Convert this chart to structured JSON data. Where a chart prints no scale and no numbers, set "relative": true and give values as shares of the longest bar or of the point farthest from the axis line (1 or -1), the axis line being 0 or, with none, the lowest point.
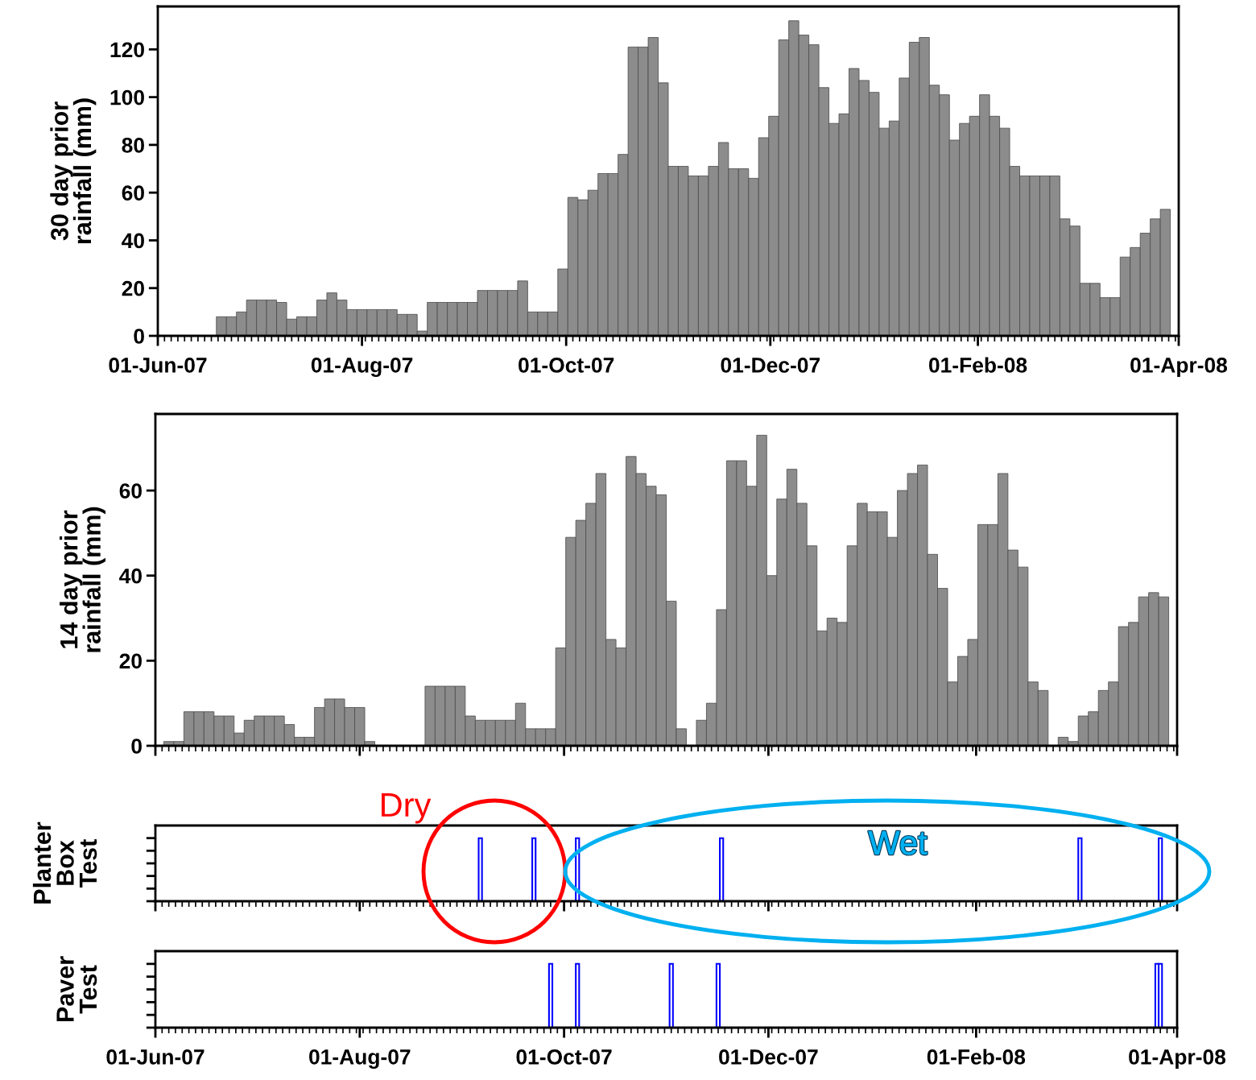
{
  "chart_data": [
    {
      "type": "bar",
      "ylabel": "30 day prior\nrainfall (mm)",
      "ylim": [
        0,
        138
      ],
      "yticks": [
        0,
        20,
        40,
        60,
        80,
        100,
        120
      ],
      "xlim": [
        "2007-06-01",
        "2008-04-01"
      ],
      "xticks": [
        {
          "value": "2007-06-01",
          "label": "01-Jun-07"
        },
        {
          "value": "2007-08-01",
          "label": "01-Aug-07"
        },
        {
          "value": "2007-10-01",
          "label": "01-Oct-07"
        },
        {
          "value": "2007-12-01",
          "label": "01-Dec-07"
        },
        {
          "value": "2008-02-01",
          "label": "01-Feb-08"
        },
        {
          "value": "2008-04-01",
          "label": "01-Apr-08"
        }
      ],
      "series": [
        {
          "color": "#8c8c8c",
          "x": [
            "2007-06-20",
            "2007-06-23",
            "2007-06-26",
            "2007-06-29",
            "2007-07-02",
            "2007-07-05",
            "2007-07-08",
            "2007-07-11",
            "2007-07-14",
            "2007-07-17",
            "2007-07-20",
            "2007-07-23",
            "2007-07-26",
            "2007-07-29",
            "2007-08-01",
            "2007-08-04",
            "2007-08-07",
            "2007-08-10",
            "2007-08-13",
            "2007-08-16",
            "2007-08-19",
            "2007-08-22",
            "2007-08-25",
            "2007-08-28",
            "2007-08-31",
            "2007-09-03",
            "2007-09-06",
            "2007-09-09",
            "2007-09-12",
            "2007-09-15",
            "2007-09-18",
            "2007-09-21",
            "2007-09-24",
            "2007-09-27",
            "2007-09-30",
            "2007-10-03",
            "2007-10-06",
            "2007-10-09",
            "2007-10-12",
            "2007-10-15",
            "2007-10-18",
            "2007-10-21",
            "2007-10-24",
            "2007-10-27",
            "2007-10-30",
            "2007-11-02",
            "2007-11-05",
            "2007-11-08",
            "2007-11-11",
            "2007-11-14",
            "2007-11-17",
            "2007-11-20",
            "2007-11-23",
            "2007-11-26",
            "2007-11-29",
            "2007-12-02",
            "2007-12-05",
            "2007-12-08",
            "2007-12-11",
            "2007-12-14",
            "2007-12-17",
            "2007-12-20",
            "2007-12-23",
            "2007-12-26",
            "2007-12-29",
            "2008-01-01",
            "2008-01-04",
            "2008-01-07",
            "2008-01-10",
            "2008-01-13",
            "2008-01-16",
            "2008-01-19",
            "2008-01-22",
            "2008-01-25",
            "2008-01-28",
            "2008-01-31",
            "2008-02-03",
            "2008-02-06",
            "2008-02-09",
            "2008-02-12",
            "2008-02-15",
            "2008-02-18",
            "2008-02-21",
            "2008-02-24",
            "2008-02-27",
            "2008-03-01",
            "2008-03-04",
            "2008-03-07",
            "2008-03-10",
            "2008-03-13",
            "2008-03-16",
            "2008-03-19",
            "2008-03-22",
            "2008-03-25",
            "2008-03-28"
          ],
          "values": [
            8,
            8,
            10,
            15,
            15,
            15,
            14,
            7,
            8,
            8,
            15,
            18,
            15,
            11,
            11,
            11,
            11,
            11,
            9,
            9,
            2,
            14,
            14,
            14,
            14,
            14,
            19,
            19,
            19,
            19,
            23,
            10,
            10,
            10,
            28,
            58,
            57,
            61,
            68,
            68,
            76,
            121,
            121,
            125,
            106,
            71,
            71,
            67,
            67,
            71,
            81,
            70,
            70,
            66,
            83,
            92,
            124,
            132,
            126,
            122,
            104,
            89,
            93,
            112,
            107,
            102,
            87,
            90,
            108,
            123,
            125,
            105,
            101,
            82,
            89,
            92,
            101,
            92,
            87,
            71,
            67,
            67,
            67,
            67,
            49,
            46,
            22,
            22,
            16,
            16,
            33,
            37,
            43,
            49,
            53
          ]
        }
      ]
    },
    {
      "type": "bar",
      "ylabel": "14 day prior\nrainfall (mm)",
      "ylim": [
        0,
        78
      ],
      "yticks": [
        0,
        20,
        40,
        60
      ],
      "xlim": [
        "2007-06-01",
        "2008-04-01"
      ],
      "tick_labels": "y",
      "xticks": [
        {
          "value": "2007-06-01",
          "label": null
        },
        {
          "value": "2007-08-01",
          "label": null
        },
        {
          "value": "2007-10-01",
          "label": null
        },
        {
          "value": "2007-12-01",
          "label": null
        },
        {
          "value": "2008-02-01",
          "label": null
        },
        {
          "value": "2008-04-01",
          "label": null
        }
      ],
      "series": [
        {
          "color": "#8c8c8c",
          "x": [
            "2007-06-05",
            "2007-06-08",
            "2007-06-11",
            "2007-06-14",
            "2007-06-17",
            "2007-06-20",
            "2007-06-23",
            "2007-06-26",
            "2007-06-29",
            "2007-07-02",
            "2007-07-05",
            "2007-07-08",
            "2007-07-11",
            "2007-07-14",
            "2007-07-17",
            "2007-07-20",
            "2007-07-23",
            "2007-07-26",
            "2007-07-29",
            "2007-08-01",
            "2007-08-04",
            "2007-08-07",
            "2007-08-10",
            "2007-08-13",
            "2007-08-16",
            "2007-08-19",
            "2007-08-22",
            "2007-08-25",
            "2007-08-28",
            "2007-08-31",
            "2007-09-03",
            "2007-09-06",
            "2007-09-09",
            "2007-09-12",
            "2007-09-15",
            "2007-09-18",
            "2007-09-21",
            "2007-09-24",
            "2007-09-27",
            "2007-09-30",
            "2007-10-03",
            "2007-10-06",
            "2007-10-09",
            "2007-10-12",
            "2007-10-15",
            "2007-10-18",
            "2007-10-21",
            "2007-10-24",
            "2007-10-27",
            "2007-10-30",
            "2007-11-02",
            "2007-11-05",
            "2007-11-08",
            "2007-11-11",
            "2007-11-14",
            "2007-11-17",
            "2007-11-20",
            "2007-11-23",
            "2007-11-26",
            "2007-11-29",
            "2007-12-02",
            "2007-12-05",
            "2007-12-08",
            "2007-12-11",
            "2007-12-14",
            "2007-12-17",
            "2007-12-20",
            "2007-12-23",
            "2007-12-26",
            "2007-12-29",
            "2008-01-01",
            "2008-01-04",
            "2008-01-07",
            "2008-01-10",
            "2008-01-13",
            "2008-01-16",
            "2008-01-19",
            "2008-01-22",
            "2008-01-25",
            "2008-01-28",
            "2008-01-31",
            "2008-02-03",
            "2008-02-06",
            "2008-02-09",
            "2008-02-12",
            "2008-02-15",
            "2008-02-18",
            "2008-02-21",
            "2008-02-24",
            "2008-02-27",
            "2008-03-01",
            "2008-03-04",
            "2008-03-07",
            "2008-03-10",
            "2008-03-13",
            "2008-03-16",
            "2008-03-19",
            "2008-03-22",
            "2008-03-25",
            "2008-03-28"
          ],
          "values": [
            1,
            1,
            8,
            8,
            8,
            7,
            7,
            3,
            6,
            7,
            7,
            7,
            5,
            2,
            2,
            9,
            11,
            11,
            9,
            9,
            1,
            0,
            0,
            0,
            0,
            0,
            14,
            14,
            14,
            14,
            7,
            6,
            6,
            6,
            6,
            10,
            4,
            4,
            4,
            23,
            49,
            53,
            57,
            64,
            25,
            23,
            68,
            64,
            61,
            59,
            34,
            4,
            0,
            6,
            10,
            32,
            67,
            67,
            61,
            73,
            40,
            58,
            65,
            57,
            47,
            27,
            30,
            29,
            47,
            57,
            55,
            55,
            49,
            60,
            64,
            66,
            45,
            37,
            15,
            21,
            25,
            52,
            52,
            64,
            46,
            42,
            15,
            13,
            0,
            2,
            1,
            7,
            8,
            13,
            15,
            28,
            29,
            35,
            36,
            35
          ]
        }
      ]
    },
    {
      "type": "bar",
      "relative": true,
      "ylabel": "Planter\nBox\nTest",
      "xlim": [
        "2007-06-01",
        "2008-04-01"
      ],
      "tick_labels": false,
      "xticks": [
        {
          "value": "2007-06-01",
          "label": null
        },
        {
          "value": "2007-08-01",
          "label": null
        },
        {
          "value": "2007-10-01",
          "label": null
        },
        {
          "value": "2007-12-01",
          "label": null
        },
        {
          "value": "2008-02-01",
          "label": null
        },
        {
          "value": "2008-04-01",
          "label": null
        }
      ],
      "annotations": [
        "Dry",
        "Wet"
      ],
      "series": [
        {
          "color": "#0000ff",
          "x": [
            "2007-09-06",
            "2007-09-22",
            "2007-10-05",
            "2007-11-17",
            "2008-03-03",
            "2008-03-27"
          ],
          "values": [
            1,
            1,
            1,
            1,
            1,
            1
          ]
        }
      ]
    },
    {
      "type": "bar",
      "relative": true,
      "ylabel": "Paver\nTest",
      "xlim": [
        "2007-06-01",
        "2008-04-01"
      ],
      "tick_labels": "x",
      "xticks": [
        {
          "value": "2007-06-01",
          "label": "01-Jun-07"
        },
        {
          "value": "2007-08-01",
          "label": "01-Aug-07"
        },
        {
          "value": "2007-10-01",
          "label": "01-Oct-07"
        },
        {
          "value": "2007-12-01",
          "label": "01-Dec-07"
        },
        {
          "value": "2008-02-01",
          "label": "01-Feb-08"
        },
        {
          "value": "2008-04-01",
          "label": "01-Apr-08"
        }
      ],
      "series": [
        {
          "color": "#0000ff",
          "x": [
            "2007-09-27",
            "2007-10-05",
            "2007-11-02",
            "2007-11-16",
            "2008-03-26",
            "2008-03-27"
          ],
          "values": [
            1,
            1,
            1,
            1,
            1,
            1
          ]
        }
      ]
    }
  ]
}
